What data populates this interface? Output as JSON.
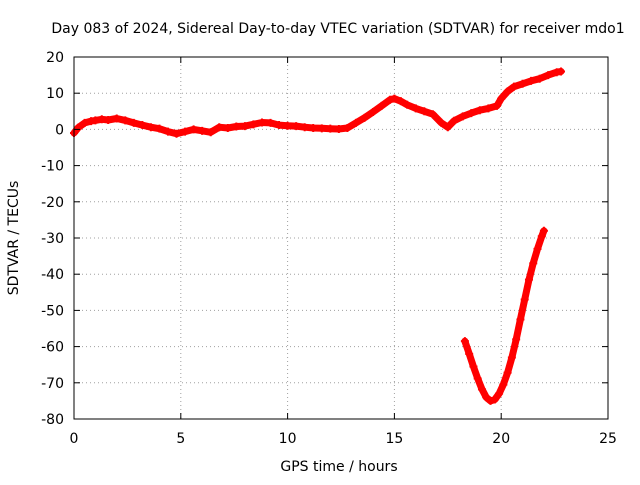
{
  "chart_data": {
    "type": "scatter",
    "title": "Day 083 of 2024, Sidereal Day-to-day VTEC variation (SDTVAR) for receiver mdo1",
    "xlabel": "GPS time / hours",
    "ylabel": "SDTVAR / TECUs",
    "xlim": [
      0,
      25
    ],
    "ylim": [
      -80,
      20
    ],
    "x_ticks": [
      "0",
      "5",
      "10",
      "15",
      "20",
      "25"
    ],
    "y_ticks": [
      "20",
      "10",
      "0",
      "-10",
      "-20",
      "-30",
      "-40",
      "-50",
      "-60",
      "-70",
      "-80"
    ],
    "grid": true,
    "grid_style": "dotted",
    "legend": "none",
    "marker_color": "#ff0000",
    "series": [
      {
        "values": [
          [
            0.0,
            -1.0
          ],
          [
            0.2,
            0.5
          ],
          [
            0.5,
            1.8
          ],
          [
            0.8,
            2.3
          ],
          [
            1.0,
            2.5
          ],
          [
            1.3,
            2.8
          ],
          [
            1.6,
            2.6
          ],
          [
            2.0,
            3.0
          ],
          [
            2.4,
            2.5
          ],
          [
            2.8,
            1.8
          ],
          [
            3.2,
            1.2
          ],
          [
            3.6,
            0.6
          ],
          [
            4.0,
            0.2
          ],
          [
            4.4,
            -0.6
          ],
          [
            4.8,
            -1.2
          ],
          [
            5.2,
            -0.6
          ],
          [
            5.6,
            0.0
          ],
          [
            6.0,
            -0.4
          ],
          [
            6.4,
            -0.8
          ],
          [
            6.8,
            0.6
          ],
          [
            7.2,
            0.4
          ],
          [
            7.6,
            0.8
          ],
          [
            8.0,
            0.9
          ],
          [
            8.4,
            1.4
          ],
          [
            8.8,
            1.9
          ],
          [
            9.2,
            1.8
          ],
          [
            9.6,
            1.2
          ],
          [
            10.0,
            1.0
          ],
          [
            10.4,
            0.9
          ],
          [
            10.8,
            0.6
          ],
          [
            11.2,
            0.4
          ],
          [
            11.6,
            0.3
          ],
          [
            12.0,
            0.2
          ],
          [
            12.4,
            0.1
          ],
          [
            12.8,
            0.4
          ],
          [
            13.2,
            1.8
          ],
          [
            13.6,
            3.2
          ],
          [
            14.0,
            4.8
          ],
          [
            14.4,
            6.5
          ],
          [
            14.8,
            8.2
          ],
          [
            15.0,
            8.5
          ],
          [
            15.3,
            7.8
          ],
          [
            15.6,
            6.8
          ],
          [
            16.0,
            5.8
          ],
          [
            16.4,
            5.0
          ],
          [
            16.8,
            4.2
          ],
          [
            17.2,
            1.8
          ],
          [
            17.5,
            0.6
          ],
          [
            17.8,
            2.4
          ],
          [
            18.2,
            3.6
          ],
          [
            18.6,
            4.5
          ],
          [
            19.0,
            5.3
          ],
          [
            19.4,
            5.8
          ],
          [
            19.8,
            6.5
          ],
          [
            20.0,
            8.5
          ],
          [
            20.3,
            10.5
          ],
          [
            20.6,
            11.8
          ],
          [
            21.0,
            12.6
          ],
          [
            21.4,
            13.4
          ],
          [
            21.8,
            14.0
          ],
          [
            22.2,
            15.0
          ],
          [
            22.6,
            15.8
          ],
          [
            22.8,
            16.0
          ]
        ]
      },
      {
        "values": [
          [
            18.3,
            -58.5
          ],
          [
            18.5,
            -62.0
          ],
          [
            18.7,
            -65.5
          ],
          [
            18.9,
            -68.8
          ],
          [
            19.1,
            -71.8
          ],
          [
            19.3,
            -74.0
          ],
          [
            19.5,
            -75.0
          ],
          [
            19.7,
            -74.6
          ],
          [
            19.9,
            -73.0
          ],
          [
            20.1,
            -70.5
          ],
          [
            20.3,
            -67.2
          ],
          [
            20.5,
            -63.0
          ],
          [
            20.7,
            -58.0
          ],
          [
            20.9,
            -52.5
          ],
          [
            21.1,
            -47.0
          ],
          [
            21.3,
            -41.5
          ],
          [
            21.5,
            -37.0
          ],
          [
            21.7,
            -33.0
          ],
          [
            21.9,
            -29.5
          ],
          [
            22.0,
            -28.0
          ]
        ]
      }
    ]
  }
}
